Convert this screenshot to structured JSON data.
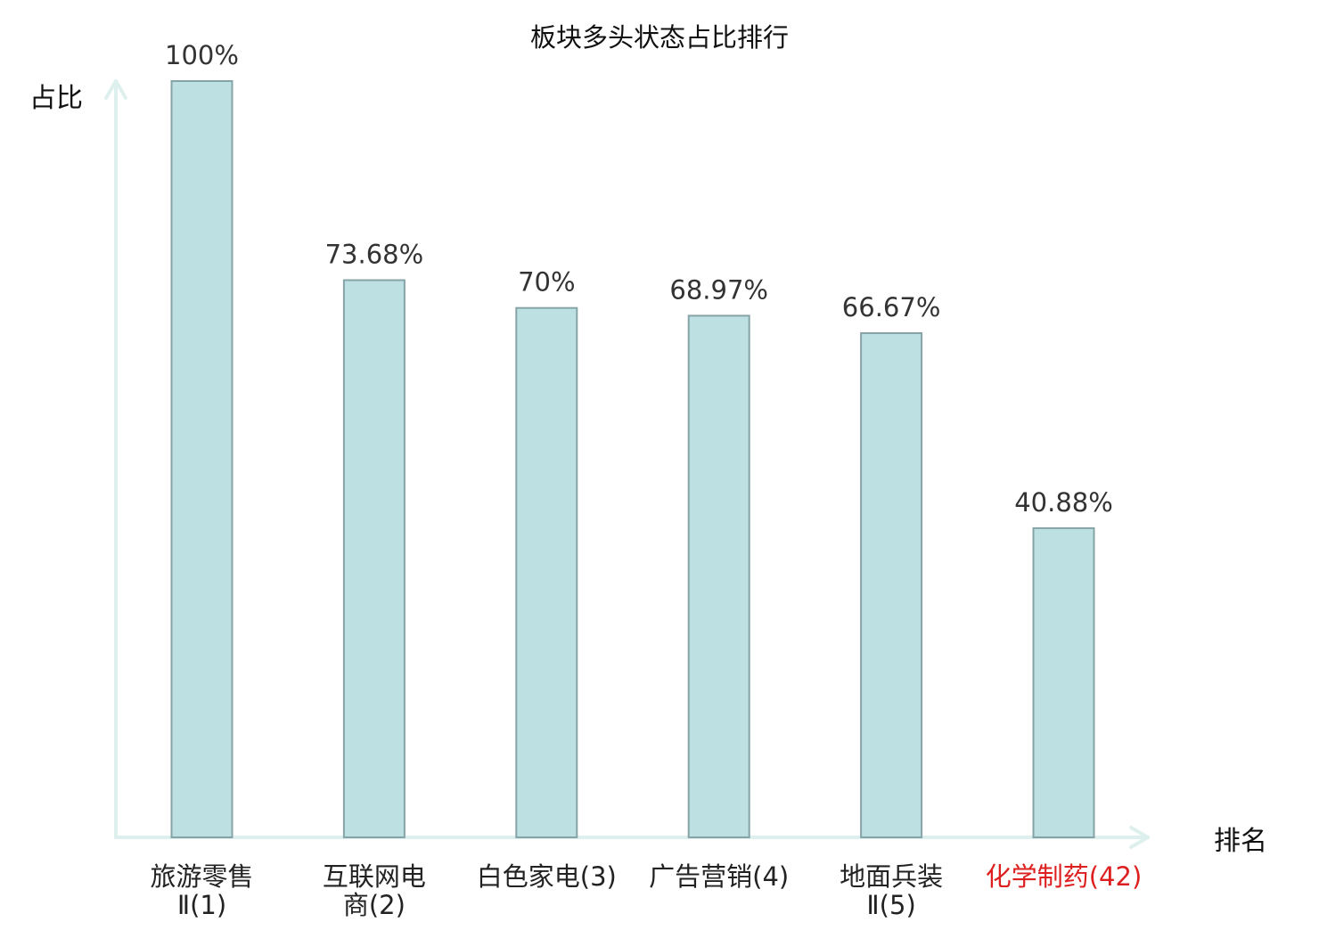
{
  "chart_data": {
    "type": "bar",
    "title": "板块多头状态占比排行",
    "ylabel": "占比",
    "xlabel": "排名",
    "ylim": [
      0,
      100
    ],
    "grid": false,
    "categories": [
      [
        "旅游零售",
        "Ⅱ(1)"
      ],
      [
        "互联网电",
        "商(2)"
      ],
      [
        "白色家电(3)"
      ],
      [
        "广告营销(4)"
      ],
      [
        "地面兵装",
        "Ⅱ(5)"
      ],
      [
        "化学制药(42)"
      ]
    ],
    "values": [
      100,
      73.68,
      70,
      68.97,
      66.67,
      40.88
    ],
    "data_labels": [
      "100%",
      "73.68%",
      "70%",
      "68.97%",
      "66.67%",
      "40.88%"
    ],
    "highlight_index": 5
  },
  "colors": {
    "bar_fill": "#bde0e3",
    "bar_stroke": "#86a4a7",
    "axis": "#def0ed",
    "text": "#222222",
    "label_text": "#333333",
    "highlight": "#dd1f1f"
  }
}
